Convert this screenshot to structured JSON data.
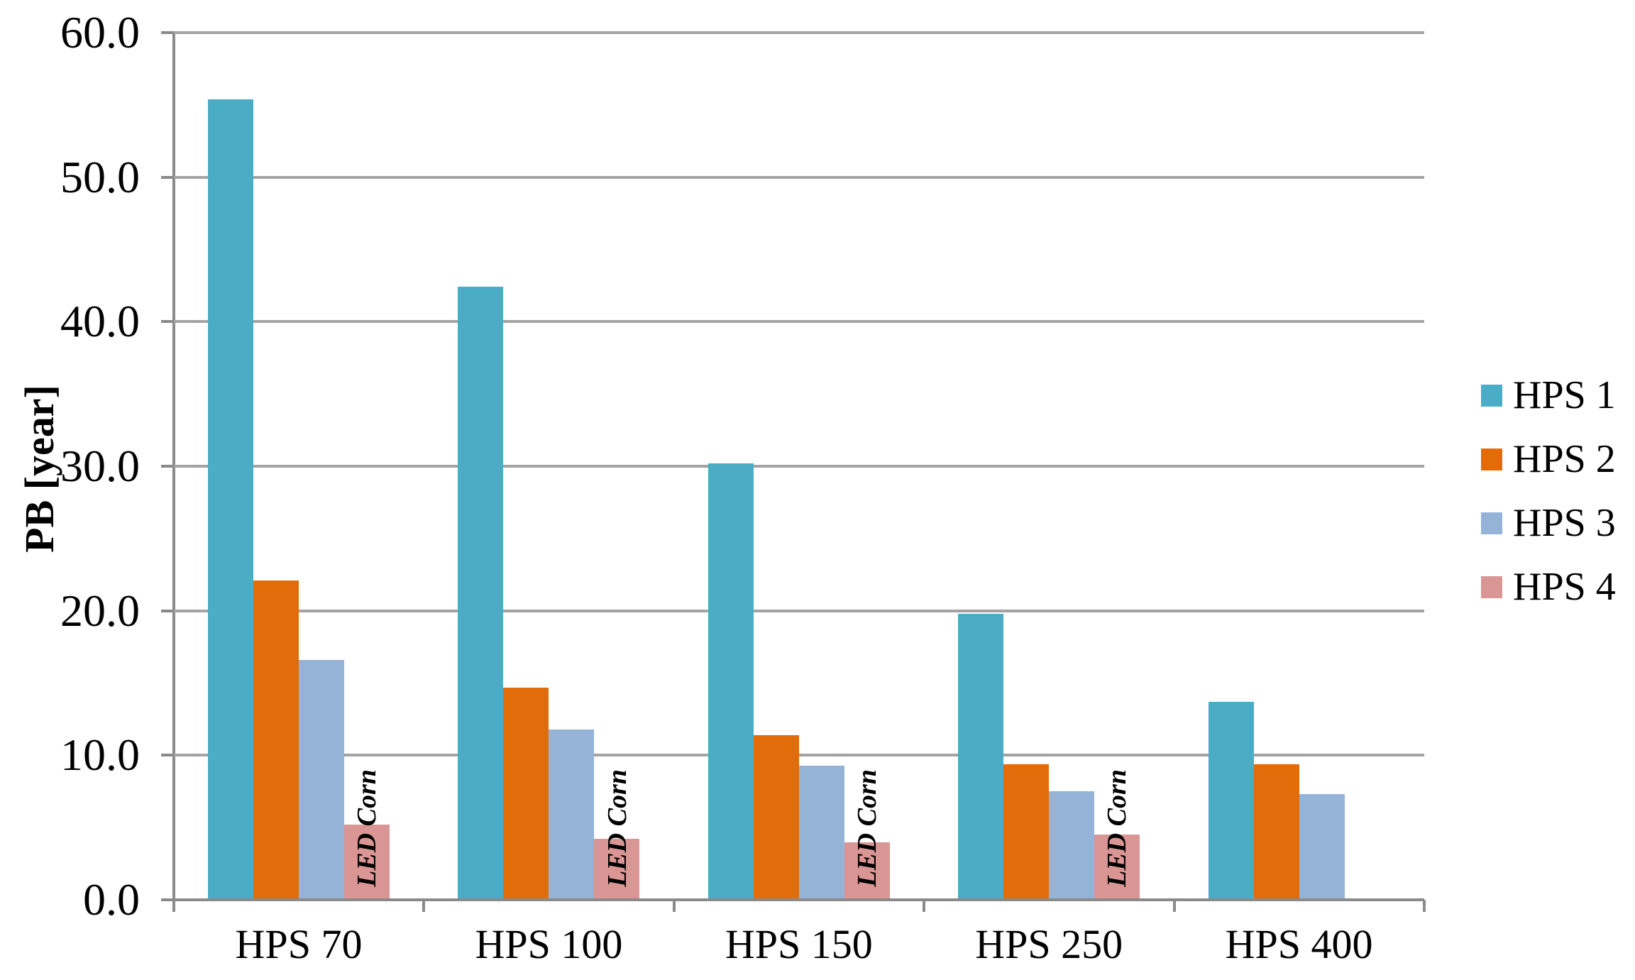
{
  "chart_data": {
    "type": "bar",
    "title": "",
    "xlabel": "",
    "ylabel": "PB [year]",
    "ylim": [
      0,
      60
    ],
    "ytick_step": 10,
    "ytick_labels": [
      "60.0",
      "50.0",
      "40.0",
      "30.0",
      "20.0",
      "10.0",
      "0.0"
    ],
    "categories": [
      "HPS 70",
      "HPS 100",
      "HPS 150",
      "HPS 250",
      "HPS 400"
    ],
    "series": [
      {
        "name": "HPS 1",
        "color": "#4BACC6",
        "values": [
          55.4,
          42.4,
          30.2,
          19.8,
          13.7
        ]
      },
      {
        "name": "HPS 2",
        "color": "#E36C0A",
        "values": [
          22.1,
          14.7,
          11.4,
          9.4,
          9.4
        ]
      },
      {
        "name": "HPS 3",
        "color": "#95B3D7",
        "values": [
          16.6,
          11.8,
          9.3,
          7.5,
          7.3
        ]
      },
      {
        "name": "HPS 4",
        "color": "#D99694",
        "values": [
          5.2,
          4.2,
          4.0,
          4.5,
          null
        ]
      }
    ],
    "bar_annotation": {
      "text": "LED Corn",
      "series": "HPS 4",
      "rotation": -90
    },
    "legend_position": "right",
    "grid": true,
    "colors": {
      "gridline": "#a3a3a3",
      "axis": "#8a8a8a",
      "text": "#000000",
      "background": "#ffffff"
    }
  }
}
